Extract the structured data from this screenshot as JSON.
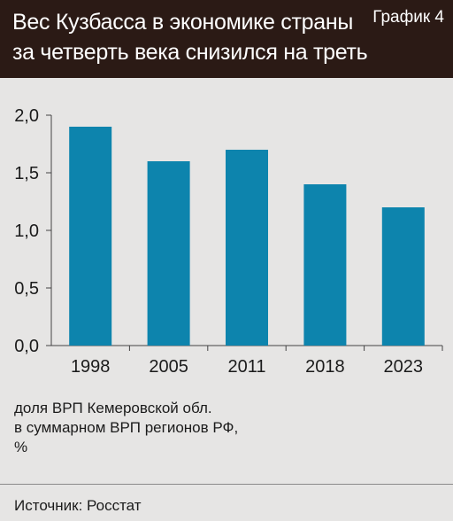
{
  "header": {
    "title_lines": [
      "Вес Кузбасса в экономике страны",
      "за четверть века снизился на треть"
    ],
    "badge": "График 4"
  },
  "note_lines": [
    "доля ВРП Кемеровской обл.",
    "в суммарном ВРП регионов РФ,",
    "%"
  ],
  "source": "Источник: Росстат",
  "colors": {
    "bar": "#0d84ad",
    "header_bg": "#2b1a15",
    "background": "#e6e5e4"
  },
  "chart_data": {
    "type": "bar",
    "categories": [
      "1998",
      "2005",
      "2011",
      "2018",
      "2023"
    ],
    "values": [
      1.9,
      1.6,
      1.7,
      1.4,
      1.2
    ],
    "y_ticks": [
      "0,0",
      "0,5",
      "1,0",
      "1,5",
      "2,0"
    ],
    "y_tick_values": [
      0,
      0.5,
      1.0,
      1.5,
      2.0
    ],
    "ylim": [
      0,
      2.0
    ],
    "grid": false,
    "title": "",
    "xlabel": "",
    "ylabel": ""
  }
}
